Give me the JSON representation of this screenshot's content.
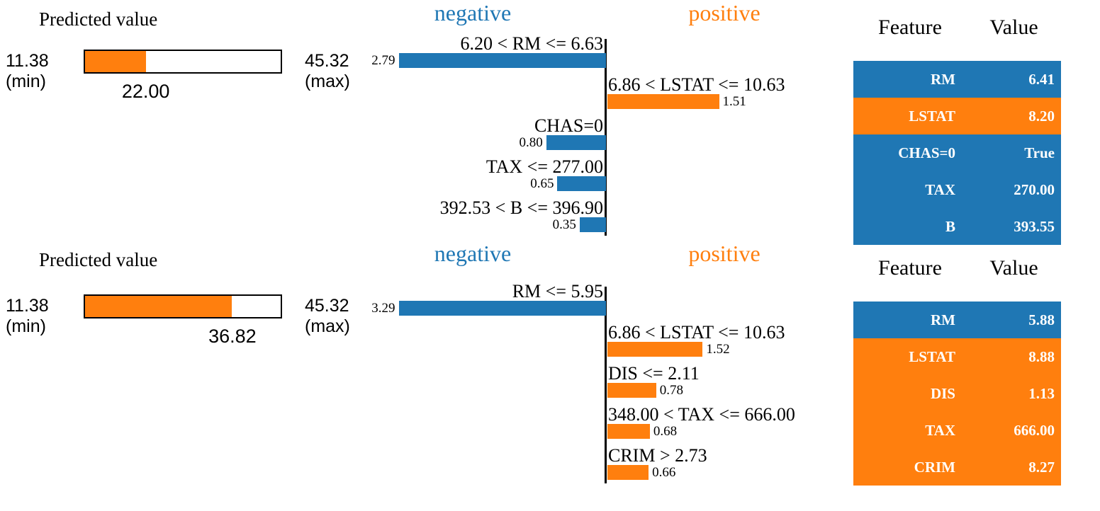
{
  "colors": {
    "negative": "#1f77b4",
    "positive": "#ff7f0e",
    "axis": "#000000",
    "table_text": "#ffffff"
  },
  "chart_data": [
    {
      "type": "bar",
      "orientation": "horizontal-diverging",
      "panel": "top",
      "predicted_value": {
        "title": "Predicted value",
        "min": 11.38,
        "max": 45.32,
        "value": 22.0,
        "min_label": "11.38",
        "min_caption": "(min)",
        "max_label": "45.32",
        "max_caption": "(max)",
        "value_label": "22.00"
      },
      "legend": {
        "negative": "negative",
        "positive": "positive"
      },
      "bars": [
        {
          "label": "6.20 < RM <= 6.63",
          "side": "negative",
          "value": 2.79,
          "value_label": "2.79"
        },
        {
          "label": "6.86 < LSTAT <= 10.63",
          "side": "positive",
          "value": 1.51,
          "value_label": "1.51"
        },
        {
          "label": "CHAS=0",
          "side": "negative",
          "value": 0.8,
          "value_label": "0.80"
        },
        {
          "label": "TAX <= 277.00",
          "side": "negative",
          "value": 0.65,
          "value_label": "0.65"
        },
        {
          "label": "392.53 < B <= 396.90",
          "side": "negative",
          "value": 0.35,
          "value_label": "0.35"
        }
      ],
      "feature_table": {
        "headers": [
          "Feature",
          "Value"
        ],
        "rows": [
          {
            "feature": "RM",
            "value": "6.41",
            "side": "negative"
          },
          {
            "feature": "LSTAT",
            "value": "8.20",
            "side": "positive"
          },
          {
            "feature": "CHAS=0",
            "value": "True",
            "side": "negative"
          },
          {
            "feature": "TAX",
            "value": "270.00",
            "side": "negative"
          },
          {
            "feature": "B",
            "value": "393.55",
            "side": "negative"
          }
        ]
      }
    },
    {
      "type": "bar",
      "orientation": "horizontal-diverging",
      "panel": "bottom",
      "predicted_value": {
        "title": "Predicted value",
        "min": 11.38,
        "max": 45.32,
        "value": 36.82,
        "min_label": "11.38",
        "min_caption": "(min)",
        "max_label": "45.32",
        "max_caption": "(max)",
        "value_label": "36.82"
      },
      "legend": {
        "negative": "negative",
        "positive": "positive"
      },
      "bars": [
        {
          "label": "RM <= 5.95",
          "side": "negative",
          "value": 3.29,
          "value_label": "3.29"
        },
        {
          "label": "6.86 < LSTAT <= 10.63",
          "side": "positive",
          "value": 1.52,
          "value_label": "1.52"
        },
        {
          "label": "DIS <= 2.11",
          "side": "positive",
          "value": 0.78,
          "value_label": "0.78"
        },
        {
          "label": "348.00 < TAX <= 666.00",
          "side": "positive",
          "value": 0.68,
          "value_label": "0.68"
        },
        {
          "label": "CRIM > 2.73",
          "side": "positive",
          "value": 0.66,
          "value_label": "0.66"
        }
      ],
      "feature_table": {
        "headers": [
          "Feature",
          "Value"
        ],
        "rows": [
          {
            "feature": "RM",
            "value": "5.88",
            "side": "negative"
          },
          {
            "feature": "LSTAT",
            "value": "8.88",
            "side": "positive"
          },
          {
            "feature": "DIS",
            "value": "1.13",
            "side": "positive"
          },
          {
            "feature": "TAX",
            "value": "666.00",
            "side": "positive"
          },
          {
            "feature": "CRIM",
            "value": "8.27",
            "side": "positive"
          }
        ]
      }
    }
  ]
}
